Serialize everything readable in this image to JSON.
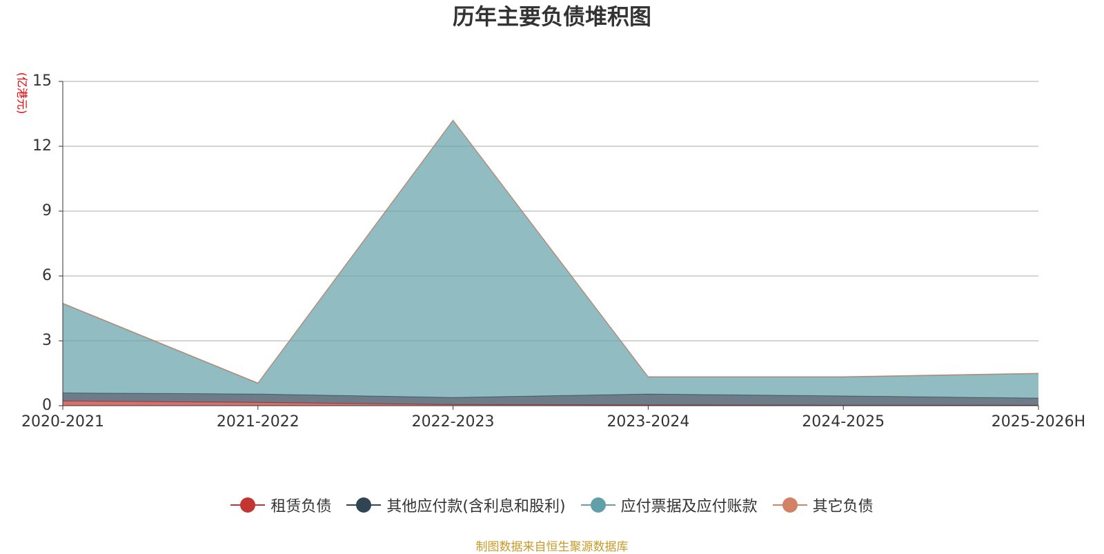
{
  "chart_data": {
    "type": "stacked_area",
    "title": "历年主要负债堆积图",
    "y_label": "(亿港元)",
    "source": "制图数据来自恒生聚源数据库",
    "categories": [
      "2020-2021",
      "2021-2022",
      "2022-2023",
      "2023-2024",
      "2024-2025",
      "2025-2026H"
    ],
    "ylim": [
      0,
      15
    ],
    "yticks": [
      0,
      3,
      6,
      9,
      12,
      15
    ],
    "grid": true,
    "series": [
      {
        "name": "租赁负债",
        "color": "#c23531",
        "values": [
          0.22,
          0.15,
          0.05,
          0.03,
          0.02,
          0.02
        ]
      },
      {
        "name": "其他应付款(含利息和股利)",
        "color": "#2f4554",
        "values": [
          0.37,
          0.39,
          0.33,
          0.51,
          0.43,
          0.33
        ]
      },
      {
        "name": "应付票据及应付账款",
        "color": "#61a0a8",
        "values": [
          4.13,
          0.49,
          12.81,
          0.78,
          0.87,
          1.13
        ]
      },
      {
        "name": "其它负债",
        "color": "#d48265",
        "values": [
          0.02,
          0.02,
          0.02,
          0.02,
          0.02,
          0.02
        ]
      }
    ]
  }
}
